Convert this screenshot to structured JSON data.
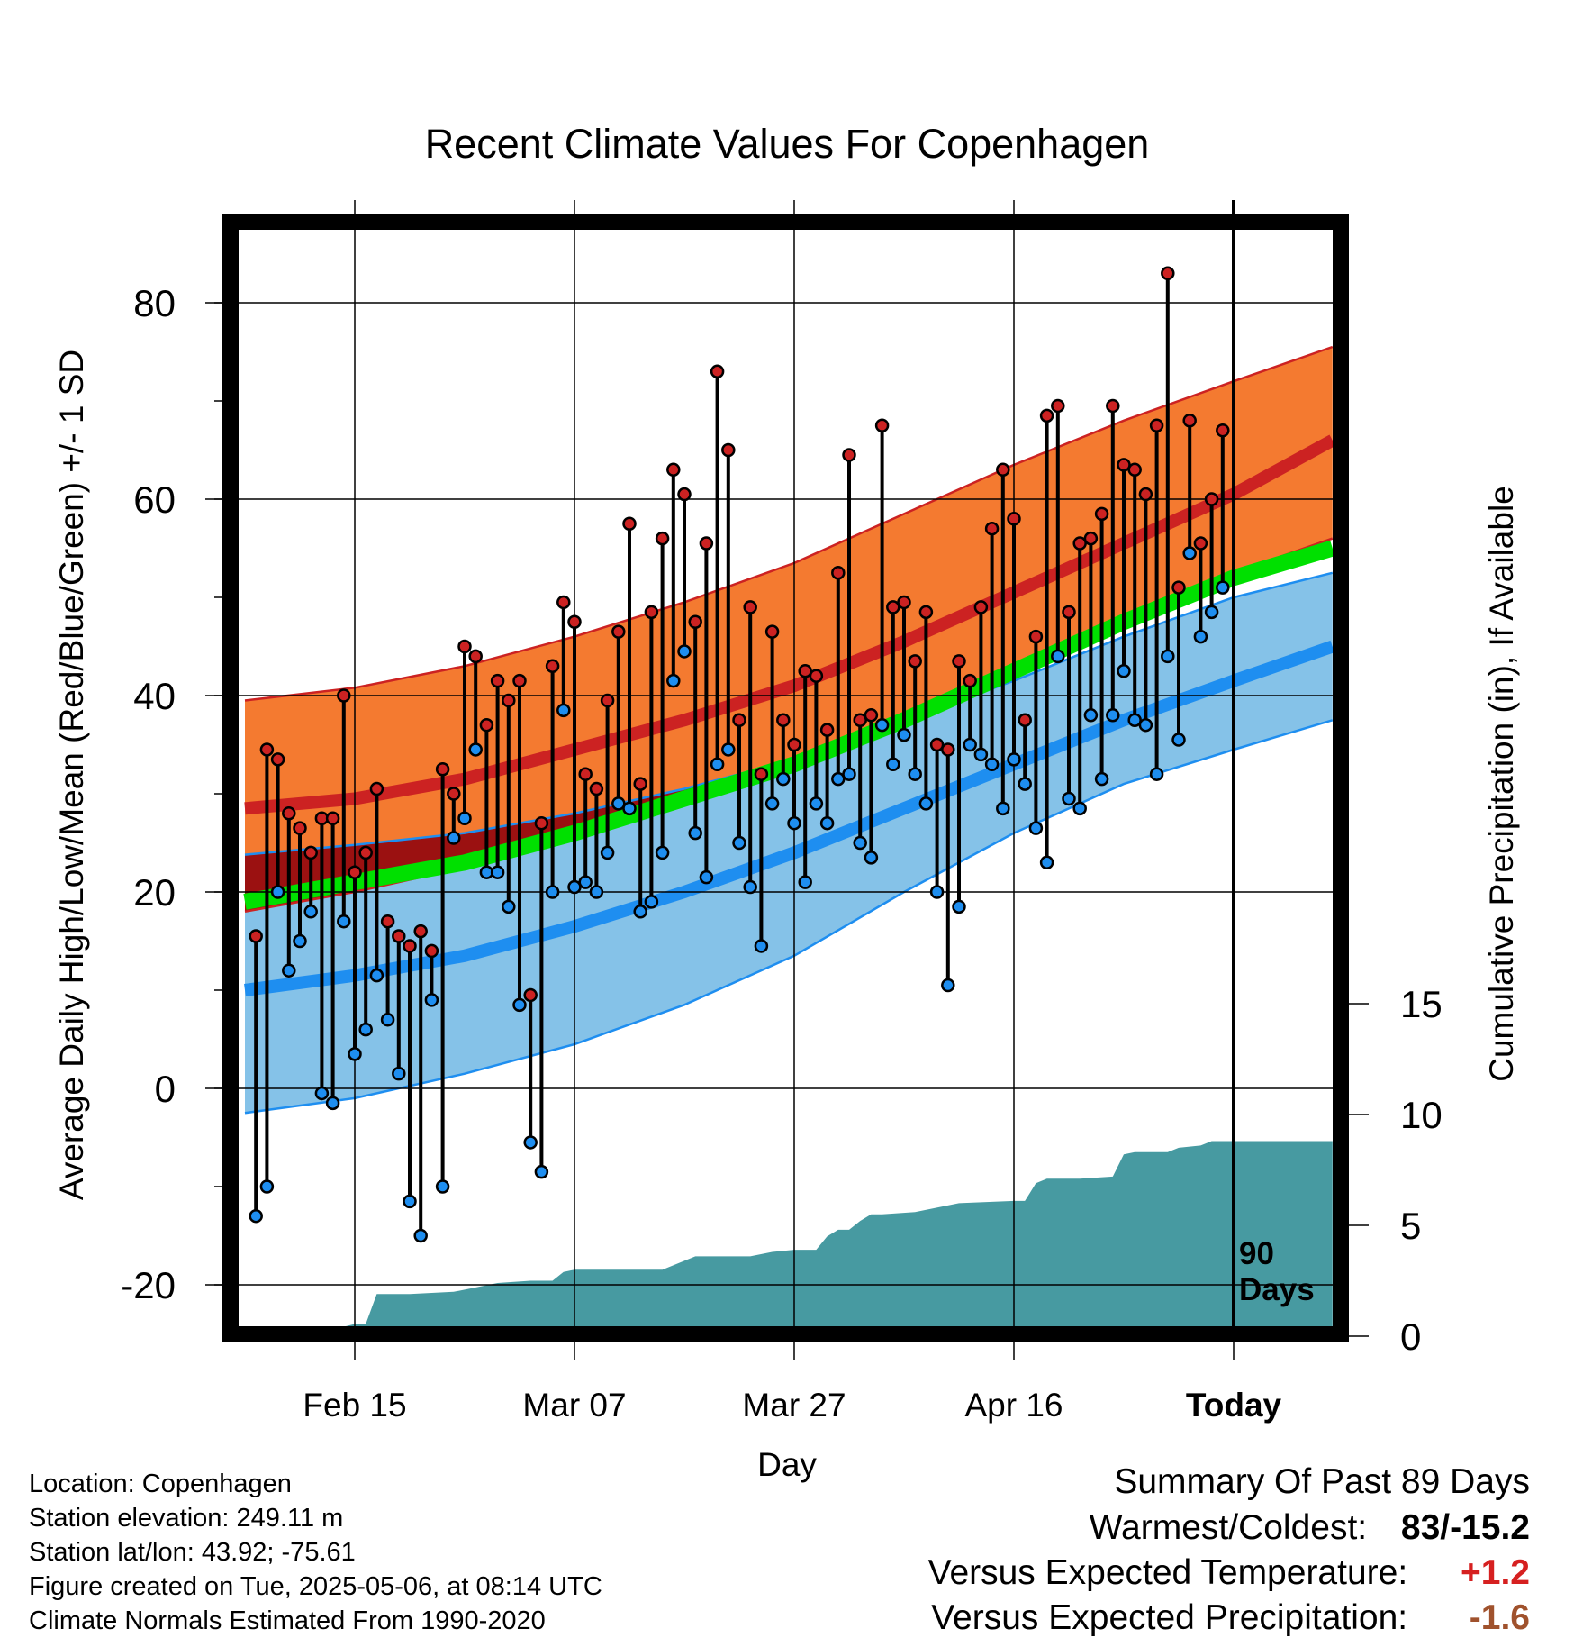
{
  "chart_data": {
    "type": "line",
    "title": "Recent Climate Values For Copenhagen",
    "xlabel": "Day",
    "ylabel": "Average Daily High/Low/Mean (Red/Blue/Green) +/- 1 SD",
    "y2label": "Cumulative Precipitation (in), If Available",
    "ylim": [
      -25,
      88
    ],
    "y_ticks": [
      "80",
      "60",
      "40",
      "20",
      "0",
      "-20"
    ],
    "y2lim": [
      0,
      40
    ],
    "y2_ticks": [
      "15",
      "10",
      "5",
      "0"
    ],
    "x_range_days": [
      -90,
      9
    ],
    "x_ticks": [
      {
        "day": -80,
        "label": "Feb 15"
      },
      {
        "day": -60,
        "label": "Mar 07"
      },
      {
        "day": -40,
        "label": "Mar 27"
      },
      {
        "day": -20,
        "label": "Apr 16"
      },
      {
        "day": 0,
        "label": "Today"
      }
    ],
    "period_label": "90\nDays",
    "grid": true,
    "colors": {
      "high_band": "#f47a30",
      "high_mean": "#cc2222",
      "low_band": "#85c2e8",
      "low_mean": "#1e8ef0",
      "mean": "#00e000",
      "overlap": "#9b1111",
      "precip": "#479aa1",
      "high_dot": "#cc2222",
      "low_dot": "#1e8ef0"
    },
    "normals": {
      "days": [
        -90,
        -80,
        -70,
        -60,
        -50,
        -40,
        -30,
        -20,
        -10,
        0,
        9
      ],
      "high_upper": [
        39.5,
        40.8,
        43.0,
        46.0,
        49.5,
        53.5,
        58.5,
        63.5,
        68.0,
        72.0,
        75.5
      ],
      "high_mean": [
        28.5,
        29.5,
        31.5,
        34.5,
        37.5,
        41.0,
        45.5,
        50.5,
        55.5,
        60.5,
        66.0
      ],
      "high_lower": [
        18.0,
        20.0,
        22.5,
        25.5,
        29.0,
        33.0,
        38.0,
        43.0,
        48.0,
        52.5,
        56.0
      ],
      "mean": [
        19.0,
        21.0,
        23.0,
        26.0,
        29.5,
        33.0,
        37.5,
        42.5,
        47.5,
        52.0,
        55.0
      ],
      "low_upper": [
        23.8,
        24.8,
        26.0,
        28.0,
        30.5,
        33.5,
        37.5,
        41.5,
        46.0,
        50.0,
        52.5
      ],
      "low_mean": [
        10.0,
        11.5,
        13.5,
        16.5,
        20.0,
        24.0,
        28.5,
        33.0,
        37.5,
        41.5,
        45.0
      ],
      "low_lower": [
        -2.5,
        -1.0,
        1.5,
        4.5,
        8.5,
        13.5,
        20.0,
        26.0,
        31.0,
        34.5,
        37.5
      ]
    },
    "daily_days": [
      -89,
      -88,
      -87,
      -86,
      -85,
      -84,
      -83,
      -82,
      -81,
      -80,
      -79,
      -78,
      -77,
      -76,
      -75,
      -74,
      -73,
      -72,
      -71,
      -70,
      -69,
      -68,
      -67,
      -66,
      -65,
      -64,
      -63,
      -62,
      -61,
      -60,
      -59,
      -58,
      -57,
      -56,
      -55,
      -54,
      -53,
      -52,
      -51,
      -50,
      -49,
      -48,
      -47,
      -46,
      -45,
      -44,
      -43,
      -42,
      -41,
      -40,
      -39,
      -38,
      -37,
      -36,
      -35,
      -34,
      -33,
      -32,
      -31,
      -30,
      -29,
      -28,
      -27,
      -26,
      -25,
      -24,
      -23,
      -22,
      -21,
      -20,
      -19,
      -18,
      -17,
      -16,
      -15,
      -14,
      -13,
      -12,
      -11,
      -10,
      -9,
      -8,
      -7,
      -6,
      -5,
      -4,
      -3,
      -2,
      -1
    ],
    "daily_high": [
      15.5,
      34.5,
      33.5,
      28.0,
      26.5,
      24.0,
      27.5,
      27.5,
      40.0,
      22.0,
      24.0,
      30.5,
      17.0,
      15.5,
      14.5,
      16.0,
      14.0,
      32.5,
      30.0,
      45.0,
      44.0,
      37.0,
      41.5,
      39.5,
      41.5,
      9.5,
      27.0,
      43.0,
      49.5,
      47.5,
      32.0,
      30.5,
      39.5,
      46.5,
      57.5,
      31.0,
      48.5,
      56.0,
      63.0,
      60.5,
      47.5,
      55.5,
      73.0,
      65.0,
      37.5,
      49.0,
      32.0,
      46.5,
      37.5,
      35.0,
      42.5,
      42.0,
      36.5,
      52.5,
      64.5,
      37.5,
      38.0,
      67.5,
      49.0,
      49.5,
      43.5,
      48.5,
      35.0,
      34.5,
      43.5,
      41.5,
      49.0,
      57.0,
      63.0,
      58.0,
      37.5,
      46.0,
      68.5,
      69.5,
      48.5,
      55.5,
      56.0,
      58.5,
      69.5,
      63.5,
      63.0,
      60.5,
      67.5,
      83.0,
      51.0,
      68.0,
      55.5,
      60.0,
      67.0
    ],
    "daily_low": [
      -13.0,
      -10.0,
      20.0,
      12.0,
      15.0,
      18.0,
      -0.5,
      -1.5,
      17.0,
      3.5,
      6.0,
      11.5,
      7.0,
      1.5,
      -11.5,
      -15.0,
      9.0,
      -10.0,
      25.5,
      27.5,
      34.5,
      22.0,
      22.0,
      18.5,
      8.5,
      -5.5,
      -8.5,
      20.0,
      38.5,
      20.5,
      21.0,
      20.0,
      24.0,
      29.0,
      28.5,
      18.0,
      19.0,
      24.0,
      41.5,
      44.5,
      26.0,
      21.5,
      33.0,
      34.5,
      25.0,
      20.5,
      14.5,
      29.0,
      31.5,
      27.0,
      21.0,
      29.0,
      27.0,
      31.5,
      32.0,
      25.0,
      23.5,
      37.0,
      33.0,
      36.0,
      32.0,
      29.0,
      20.0,
      10.5,
      18.5,
      35.0,
      34.0,
      33.0,
      28.5,
      33.5,
      31.0,
      26.5,
      23.0,
      44.0,
      29.5,
      28.5,
      38.0,
      31.5,
      38.0,
      42.5,
      37.5,
      37.0,
      32.0,
      44.0,
      35.5,
      54.5,
      46.0,
      48.5,
      51.0
    ],
    "precip_days": [
      -90,
      -86,
      -82,
      -80,
      -79,
      -78,
      -75,
      -71,
      -67,
      -64,
      -62,
      -61,
      -60,
      -58,
      -52,
      -49,
      -44,
      -42,
      -40,
      -38,
      -37,
      -36,
      -35,
      -34,
      -33,
      -32,
      -29,
      -25,
      -20,
      -19,
      -18,
      -17,
      -14,
      -11,
      -10,
      -9,
      -6,
      -5,
      -3,
      -2,
      0,
      9
    ],
    "precip_values": [
      0.0,
      0.05,
      0.3,
      0.55,
      0.55,
      1.9,
      1.9,
      2.0,
      2.4,
      2.5,
      2.5,
      2.9,
      3.0,
      3.0,
      3.0,
      3.6,
      3.6,
      3.8,
      3.9,
      3.9,
      4.5,
      4.8,
      4.8,
      5.2,
      5.5,
      5.5,
      5.6,
      6.0,
      6.1,
      6.1,
      6.9,
      7.1,
      7.1,
      7.2,
      8.2,
      8.3,
      8.3,
      8.5,
      8.6,
      8.8,
      8.8,
      8.8
    ]
  },
  "info": {
    "location": "Location: Copenhagen",
    "elevation": "Station elevation: 249.11 m",
    "latlon": "Station lat/lon: 43.92; -75.61",
    "created": "Figure created on Tue, 2025-05-06, at 08:14 UTC",
    "normals": "Climate Normals Estimated From 1990-2020"
  },
  "summary": {
    "title": "Summary Of Past 89 Days",
    "warm_cold_label": "Warmest/Coldest:",
    "warm_cold_value": "83/-15.2",
    "temp_label": "Versus Expected Temperature:",
    "temp_value": "+1.2",
    "temp_color": "#d62020",
    "precip_label": "Versus Expected Precipitation:",
    "precip_value": "-1.6",
    "precip_color": "#a0522d"
  }
}
